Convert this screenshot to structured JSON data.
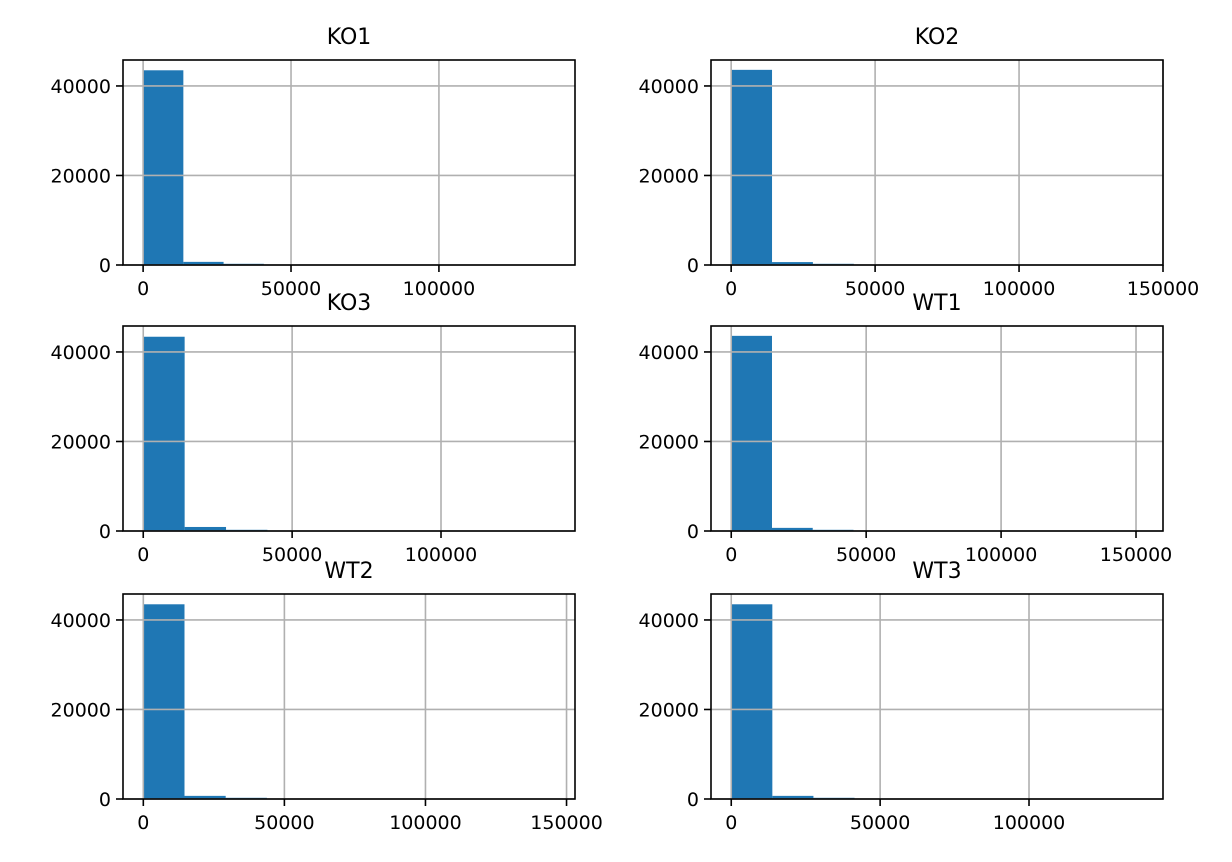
{
  "chart_data": [
    {
      "type": "bar",
      "title": "KO1",
      "xlim": [
        -6800,
        146000
      ],
      "ylim": [
        0,
        45800
      ],
      "xticks": [
        0,
        50000,
        100000
      ],
      "xtick_labels": [
        "0",
        "50000",
        "100000"
      ],
      "yticks": [
        0,
        20000,
        40000
      ],
      "ytick_labels": [
        "0",
        "20000",
        "40000"
      ],
      "bins": [
        [
          0,
          13600,
          43500
        ],
        [
          13600,
          27200,
          700
        ],
        [
          27200,
          40800,
          100
        ]
      ],
      "grid": true,
      "bar_color": "#1f77b4"
    },
    {
      "type": "bar",
      "title": "KO2",
      "xlim": [
        -7000,
        150000
      ],
      "ylim": [
        0,
        45800
      ],
      "xticks": [
        0,
        50000,
        100000,
        150000
      ],
      "xtick_labels": [
        "0",
        "50000",
        "100000",
        "150000"
      ],
      "yticks": [
        0,
        20000,
        40000
      ],
      "ytick_labels": [
        "0",
        "20000",
        "40000"
      ],
      "bins": [
        [
          0,
          14200,
          43600
        ],
        [
          14200,
          28400,
          650
        ],
        [
          28400,
          42600,
          100
        ]
      ],
      "grid": true,
      "bar_color": "#1f77b4"
    },
    {
      "type": "bar",
      "title": "KO3",
      "xlim": [
        -6800,
        145000
      ],
      "ylim": [
        0,
        45800
      ],
      "xticks": [
        0,
        50000,
        100000
      ],
      "xtick_labels": [
        "0",
        "50000",
        "100000"
      ],
      "yticks": [
        0,
        20000,
        40000
      ],
      "ytick_labels": [
        "0",
        "20000",
        "40000"
      ],
      "bins": [
        [
          0,
          13900,
          43400
        ],
        [
          13900,
          27800,
          900
        ],
        [
          27800,
          41700,
          100
        ]
      ],
      "grid": true,
      "bar_color": "#1f77b4"
    },
    {
      "type": "bar",
      "title": "WT1",
      "xlim": [
        -7500,
        160000
      ],
      "ylim": [
        0,
        45800
      ],
      "xticks": [
        0,
        50000,
        100000,
        150000
      ],
      "xtick_labels": [
        "0",
        "50000",
        "100000",
        "150000"
      ],
      "yticks": [
        0,
        20000,
        40000
      ],
      "ytick_labels": [
        "0",
        "20000",
        "40000"
      ],
      "bins": [
        [
          0,
          15100,
          43600
        ],
        [
          15100,
          30200,
          700
        ],
        [
          30200,
          45300,
          100
        ]
      ],
      "grid": true,
      "bar_color": "#1f77b4"
    },
    {
      "type": "bar",
      "title": "WT2",
      "xlim": [
        -7200,
        153000
      ],
      "ylim": [
        0,
        45800
      ],
      "xticks": [
        0,
        50000,
        100000,
        150000
      ],
      "xtick_labels": [
        "0",
        "50000",
        "100000",
        "150000"
      ],
      "yticks": [
        0,
        20000,
        40000
      ],
      "ytick_labels": [
        "0",
        "20000",
        "40000"
      ],
      "bins": [
        [
          0,
          14600,
          43500
        ],
        [
          14600,
          29200,
          700
        ],
        [
          29200,
          43800,
          100
        ]
      ],
      "grid": true,
      "bar_color": "#1f77b4"
    },
    {
      "type": "bar",
      "title": "WT3",
      "xlim": [
        -6800,
        145000
      ],
      "ylim": [
        0,
        45800
      ],
      "xticks": [
        0,
        50000,
        100000
      ],
      "xtick_labels": [
        "0",
        "50000",
        "100000"
      ],
      "yticks": [
        0,
        20000,
        40000
      ],
      "ytick_labels": [
        "0",
        "20000",
        "40000"
      ],
      "bins": [
        [
          0,
          13800,
          43500
        ],
        [
          13800,
          27600,
          700
        ],
        [
          27600,
          41400,
          100
        ]
      ],
      "grid": true,
      "bar_color": "#1f77b4"
    }
  ]
}
